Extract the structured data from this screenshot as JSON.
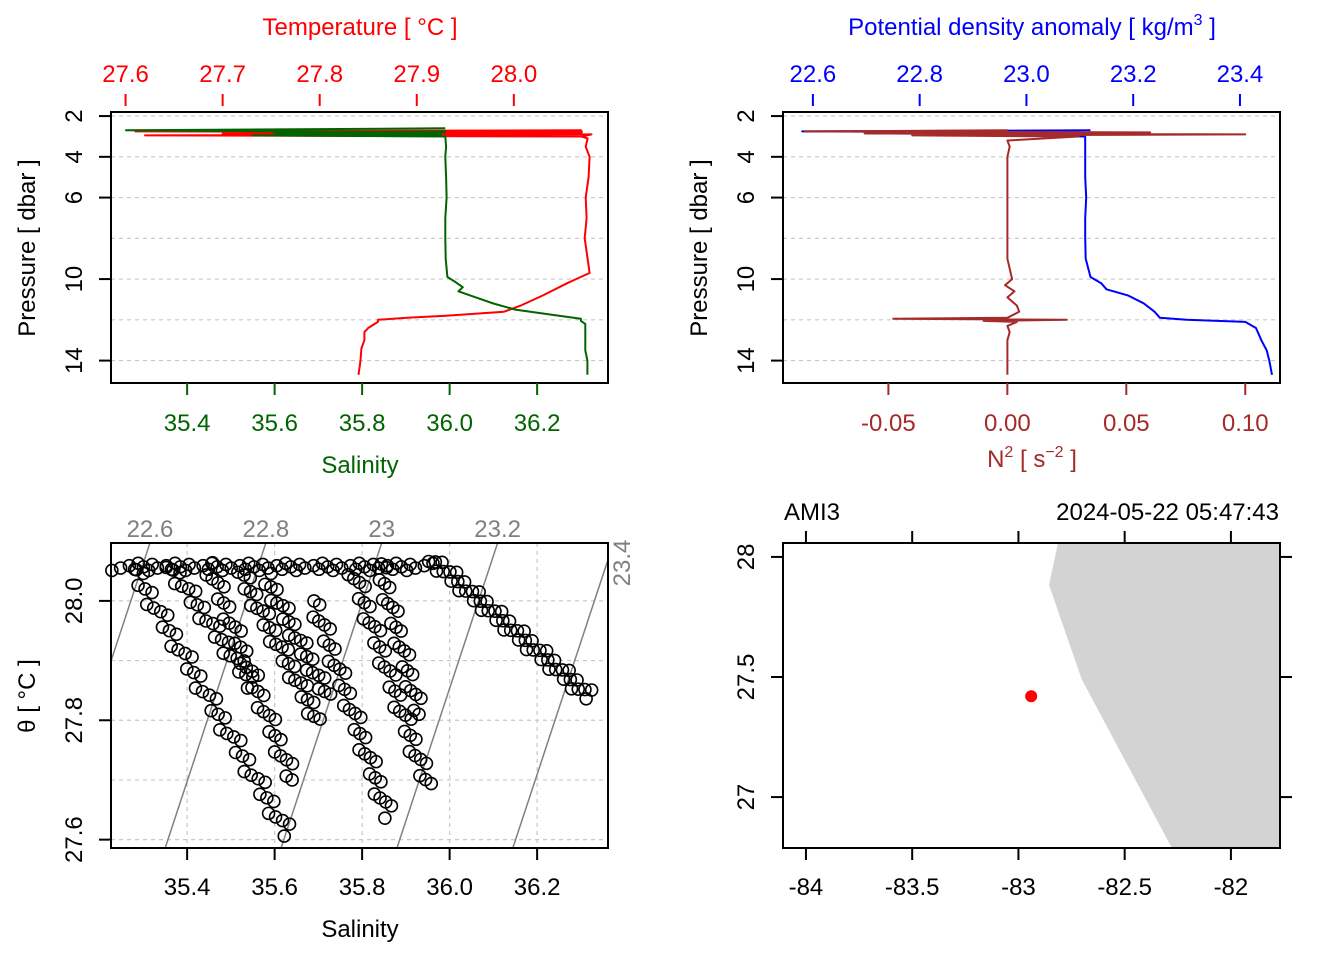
{
  "colors": {
    "temperature": "#ff0000",
    "salinity": "#006400",
    "density": "#0000ff",
    "n2": "#a52a2a",
    "isopycnal": "#808080",
    "land": "#d3d3d3",
    "station": "#ff0000"
  },
  "chart_data": [
    {
      "type": "line",
      "panel": "temperature-salinity-profile",
      "title": "Temperature [ °C ]",
      "xlabel": "Salinity",
      "ylabel": "Pressure [ dbar ]",
      "pressure_ticks": [
        "2",
        "4",
        "6",
        "10",
        "14"
      ],
      "pressure_tick_values": [
        2,
        4,
        6,
        10,
        14
      ],
      "pressure_grid": [
        2,
        4,
        6,
        8,
        10,
        12,
        14
      ],
      "ylim": [
        15.1,
        1.8
      ],
      "temperature_ticks": [
        "27.6",
        "27.7",
        "27.8",
        "27.9",
        "28.0"
      ],
      "temperature_tick_values": [
        27.6,
        27.7,
        27.8,
        27.9,
        28.0
      ],
      "temperature_lim": [
        27.585,
        28.097
      ],
      "salinity_ticks": [
        "35.4",
        "35.6",
        "35.8",
        "36.0",
        "36.2"
      ],
      "salinity_tick_values": [
        35.4,
        35.6,
        35.8,
        36.0,
        36.2
      ],
      "salinity_lim": [
        35.226,
        36.362
      ],
      "series": [
        {
          "name": "Temperature",
          "pressure": [
            2.7,
            2.75,
            2.8,
            2.85,
            2.9,
            2.95,
            3.0,
            2.85,
            2.75,
            2.8,
            2.9,
            3.0,
            3.1,
            3.5,
            4.0,
            5,
            6,
            7,
            8,
            9,
            9.7,
            10.0,
            10.2,
            10.8,
            11.3,
            11.6,
            11.8,
            11.9,
            12.0,
            12.1,
            12.4,
            12.6,
            13.0,
            13.4,
            14.0,
            14.7
          ],
          "values": [
            28.07,
            27.61,
            28.07,
            27.7,
            28.07,
            27.62,
            28.07,
            27.8,
            28.07,
            27.75,
            28.08,
            28.07,
            28.076,
            28.074,
            28.078,
            28.077,
            28.074,
            28.075,
            28.073,
            28.076,
            28.078,
            28.064,
            28.055,
            28.03,
            28.007,
            27.99,
            27.93,
            27.89,
            27.86,
            27.86,
            27.85,
            27.846,
            27.846,
            27.843,
            27.842,
            27.84
          ]
        },
        {
          "name": "Salinity",
          "pressure": [
            2.6,
            2.7,
            2.8,
            2.85,
            2.9,
            2.95,
            3.0,
            2.8,
            2.75,
            2.85,
            3.0,
            3.5,
            4.0,
            5,
            6,
            7,
            8,
            9,
            9.9,
            10.1,
            10.4,
            10.6,
            10.9,
            11.2,
            11.5,
            11.8,
            11.95,
            12.05,
            12.2,
            12.6,
            13,
            13.5,
            14,
            14.7
          ],
          "values": [
            35.99,
            35.26,
            35.99,
            35.7,
            35.98,
            35.55,
            35.99,
            35.8,
            35.99,
            35.6,
            35.99,
            35.992,
            35.99,
            35.992,
            35.993,
            35.99,
            35.99,
            35.991,
            35.995,
            36.01,
            36.03,
            36.02,
            36.06,
            36.1,
            36.15,
            36.25,
            36.3,
            36.3,
            36.31,
            36.31,
            36.31,
            36.31,
            36.315,
            36.315
          ]
        }
      ]
    },
    {
      "type": "line",
      "panel": "density-n2-profile",
      "title_main": "Potential density anomaly [ kg/m",
      "title_exp": "3",
      "title_end": " ]",
      "xlabel_main": "N",
      "xlabel_exp": "2",
      "xlabel_mid": " [ s",
      "xlabel_exp2": "−2",
      "xlabel_end": " ]",
      "ylabel": "Pressure [ dbar ]",
      "density_ticks": [
        "22.6",
        "22.8",
        "23.0",
        "23.2",
        "23.4"
      ],
      "density_tick_values": [
        22.6,
        22.8,
        23.0,
        23.2,
        23.4
      ],
      "density_lim": [
        22.544,
        23.475
      ],
      "n2_ticks": [
        "-0.05",
        "0.00",
        "0.05",
        "0.10"
      ],
      "n2_tick_values": [
        -0.05,
        0.0,
        0.05,
        0.1
      ],
      "n2_lim": [
        -0.0943,
        0.1146
      ],
      "series": [
        {
          "name": "Potential density anomaly",
          "pressure": [
            2.7,
            2.75,
            2.8,
            2.85,
            2.9,
            2.95,
            3.0,
            3.1,
            3.5,
            4,
            5,
            6,
            7,
            8,
            9,
            9.9,
            10.2,
            10.5,
            10.8,
            11.2,
            11.6,
            11.9,
            12.0,
            12.1,
            12.4,
            13,
            13.5,
            14,
            14.7
          ],
          "values": [
            23.12,
            22.58,
            23.1,
            22.7,
            23.12,
            22.9,
            23.11,
            23.11,
            23.11,
            23.11,
            23.11,
            23.112,
            23.11,
            23.11,
            23.111,
            23.12,
            23.14,
            23.15,
            23.19,
            23.22,
            23.24,
            23.25,
            23.3,
            23.41,
            23.43,
            23.44,
            23.45,
            23.455,
            23.46
          ]
        },
        {
          "name": "N2",
          "pressure": [
            2.7,
            2.75,
            2.8,
            2.85,
            2.9,
            2.95,
            3.0,
            3.2,
            3.5,
            4,
            5,
            7,
            9,
            10.0,
            10.3,
            10.6,
            10.9,
            11.3,
            11.6,
            11.9,
            11.95,
            12.0,
            12.05,
            12.1,
            12.3,
            12.6,
            13,
            14,
            14.7
          ],
          "values": [
            0.0,
            -0.085,
            0.06,
            -0.06,
            0.1,
            -0.04,
            0.03,
            0.0,
            0.001,
            0.0,
            0.0,
            0.0,
            0.0,
            0.002,
            -0.001,
            0.003,
            0.0,
            0.004,
            0.005,
            0.0,
            -0.048,
            0.025,
            -0.01,
            0.004,
            0.0,
            0.001,
            0.0,
            0.0,
            0.0
          ]
        }
      ]
    },
    {
      "type": "scatter",
      "panel": "ts-diagram",
      "xlabel": "Salinity",
      "ylabel": "θ [ °C ]",
      "salinity_ticks": [
        "35.4",
        "35.6",
        "35.8",
        "36.0",
        "36.2"
      ],
      "salinity_tick_values": [
        35.4,
        35.6,
        35.8,
        36.0,
        36.2
      ],
      "xlim": [
        35.226,
        36.362
      ],
      "theta_ticks": [
        "27.6",
        "27.8",
        "28.0"
      ],
      "theta_tick_values": [
        27.6,
        27.8,
        28.0
      ],
      "theta_grid": [
        27.6,
        27.7,
        27.8,
        27.9,
        28.0
      ],
      "ylim": [
        27.586,
        28.097
      ],
      "isopycnals": [
        {
          "level": 22.6,
          "label": "22.6"
        },
        {
          "level": 22.8,
          "label": "22.8"
        },
        {
          "level": 23.0,
          "label": "23"
        },
        {
          "level": 23.2,
          "label": "23.2"
        },
        {
          "level": 23.4,
          "label": "23.4"
        }
      ],
      "streaks": [
        {
          "from": [
            35.24,
            28.057
          ],
          "to": [
            35.95,
            28.057
          ],
          "n": 60
        },
        {
          "from": [
            35.28,
            28.05
          ],
          "to": [
            35.63,
            27.61
          ],
          "n": 45
        },
        {
          "from": [
            35.36,
            28.06
          ],
          "to": [
            35.55,
            27.86
          ],
          "n": 25
        },
        {
          "from": [
            35.45,
            28.06
          ],
          "to": [
            35.64,
            27.7
          ],
          "n": 35
        },
        {
          "from": [
            35.52,
            28.05
          ],
          "to": [
            35.7,
            27.8
          ],
          "n": 30
        },
        {
          "from": [
            35.58,
            28.04
          ],
          "to": [
            35.72,
            27.84
          ],
          "n": 25
        },
        {
          "from": [
            35.69,
            28.0
          ],
          "to": [
            35.86,
            27.64
          ],
          "n": 35
        },
        {
          "from": [
            35.78,
            28.05
          ],
          "to": [
            35.95,
            27.69
          ],
          "n": 35
        },
        {
          "from": [
            35.84,
            28.06
          ],
          "to": [
            35.93,
            27.81
          ],
          "n": 25
        },
        {
          "from": [
            35.96,
            28.07
          ],
          "to": [
            36.32,
            27.84
          ],
          "n": 50
        }
      ]
    },
    {
      "type": "scatter",
      "panel": "station-map",
      "station": "AMI3",
      "datetime": "2024-05-22 05:47:43",
      "lon_ticks": [
        "-84",
        "-83.5",
        "-83",
        "-82.5",
        "-82"
      ],
      "lon_tick_values": [
        -84,
        -83.5,
        -83,
        -82.5,
        -82
      ],
      "xlim": [
        -84.108,
        -81.769
      ],
      "lat_ticks": [
        "27",
        "27.5",
        "28"
      ],
      "lat_tick_values": [
        27,
        27.5,
        28
      ],
      "ylim": [
        26.788,
        28.058
      ],
      "station_position": {
        "lon": -82.94,
        "lat": 27.42
      },
      "coastline": [
        [
          -82.814,
          28.058
        ],
        [
          -82.856,
          27.883
        ],
        [
          -82.701,
          27.488
        ],
        [
          -82.278,
          26.788
        ],
        [
          -81.769,
          26.788
        ],
        [
          -81.769,
          28.058
        ]
      ]
    }
  ]
}
